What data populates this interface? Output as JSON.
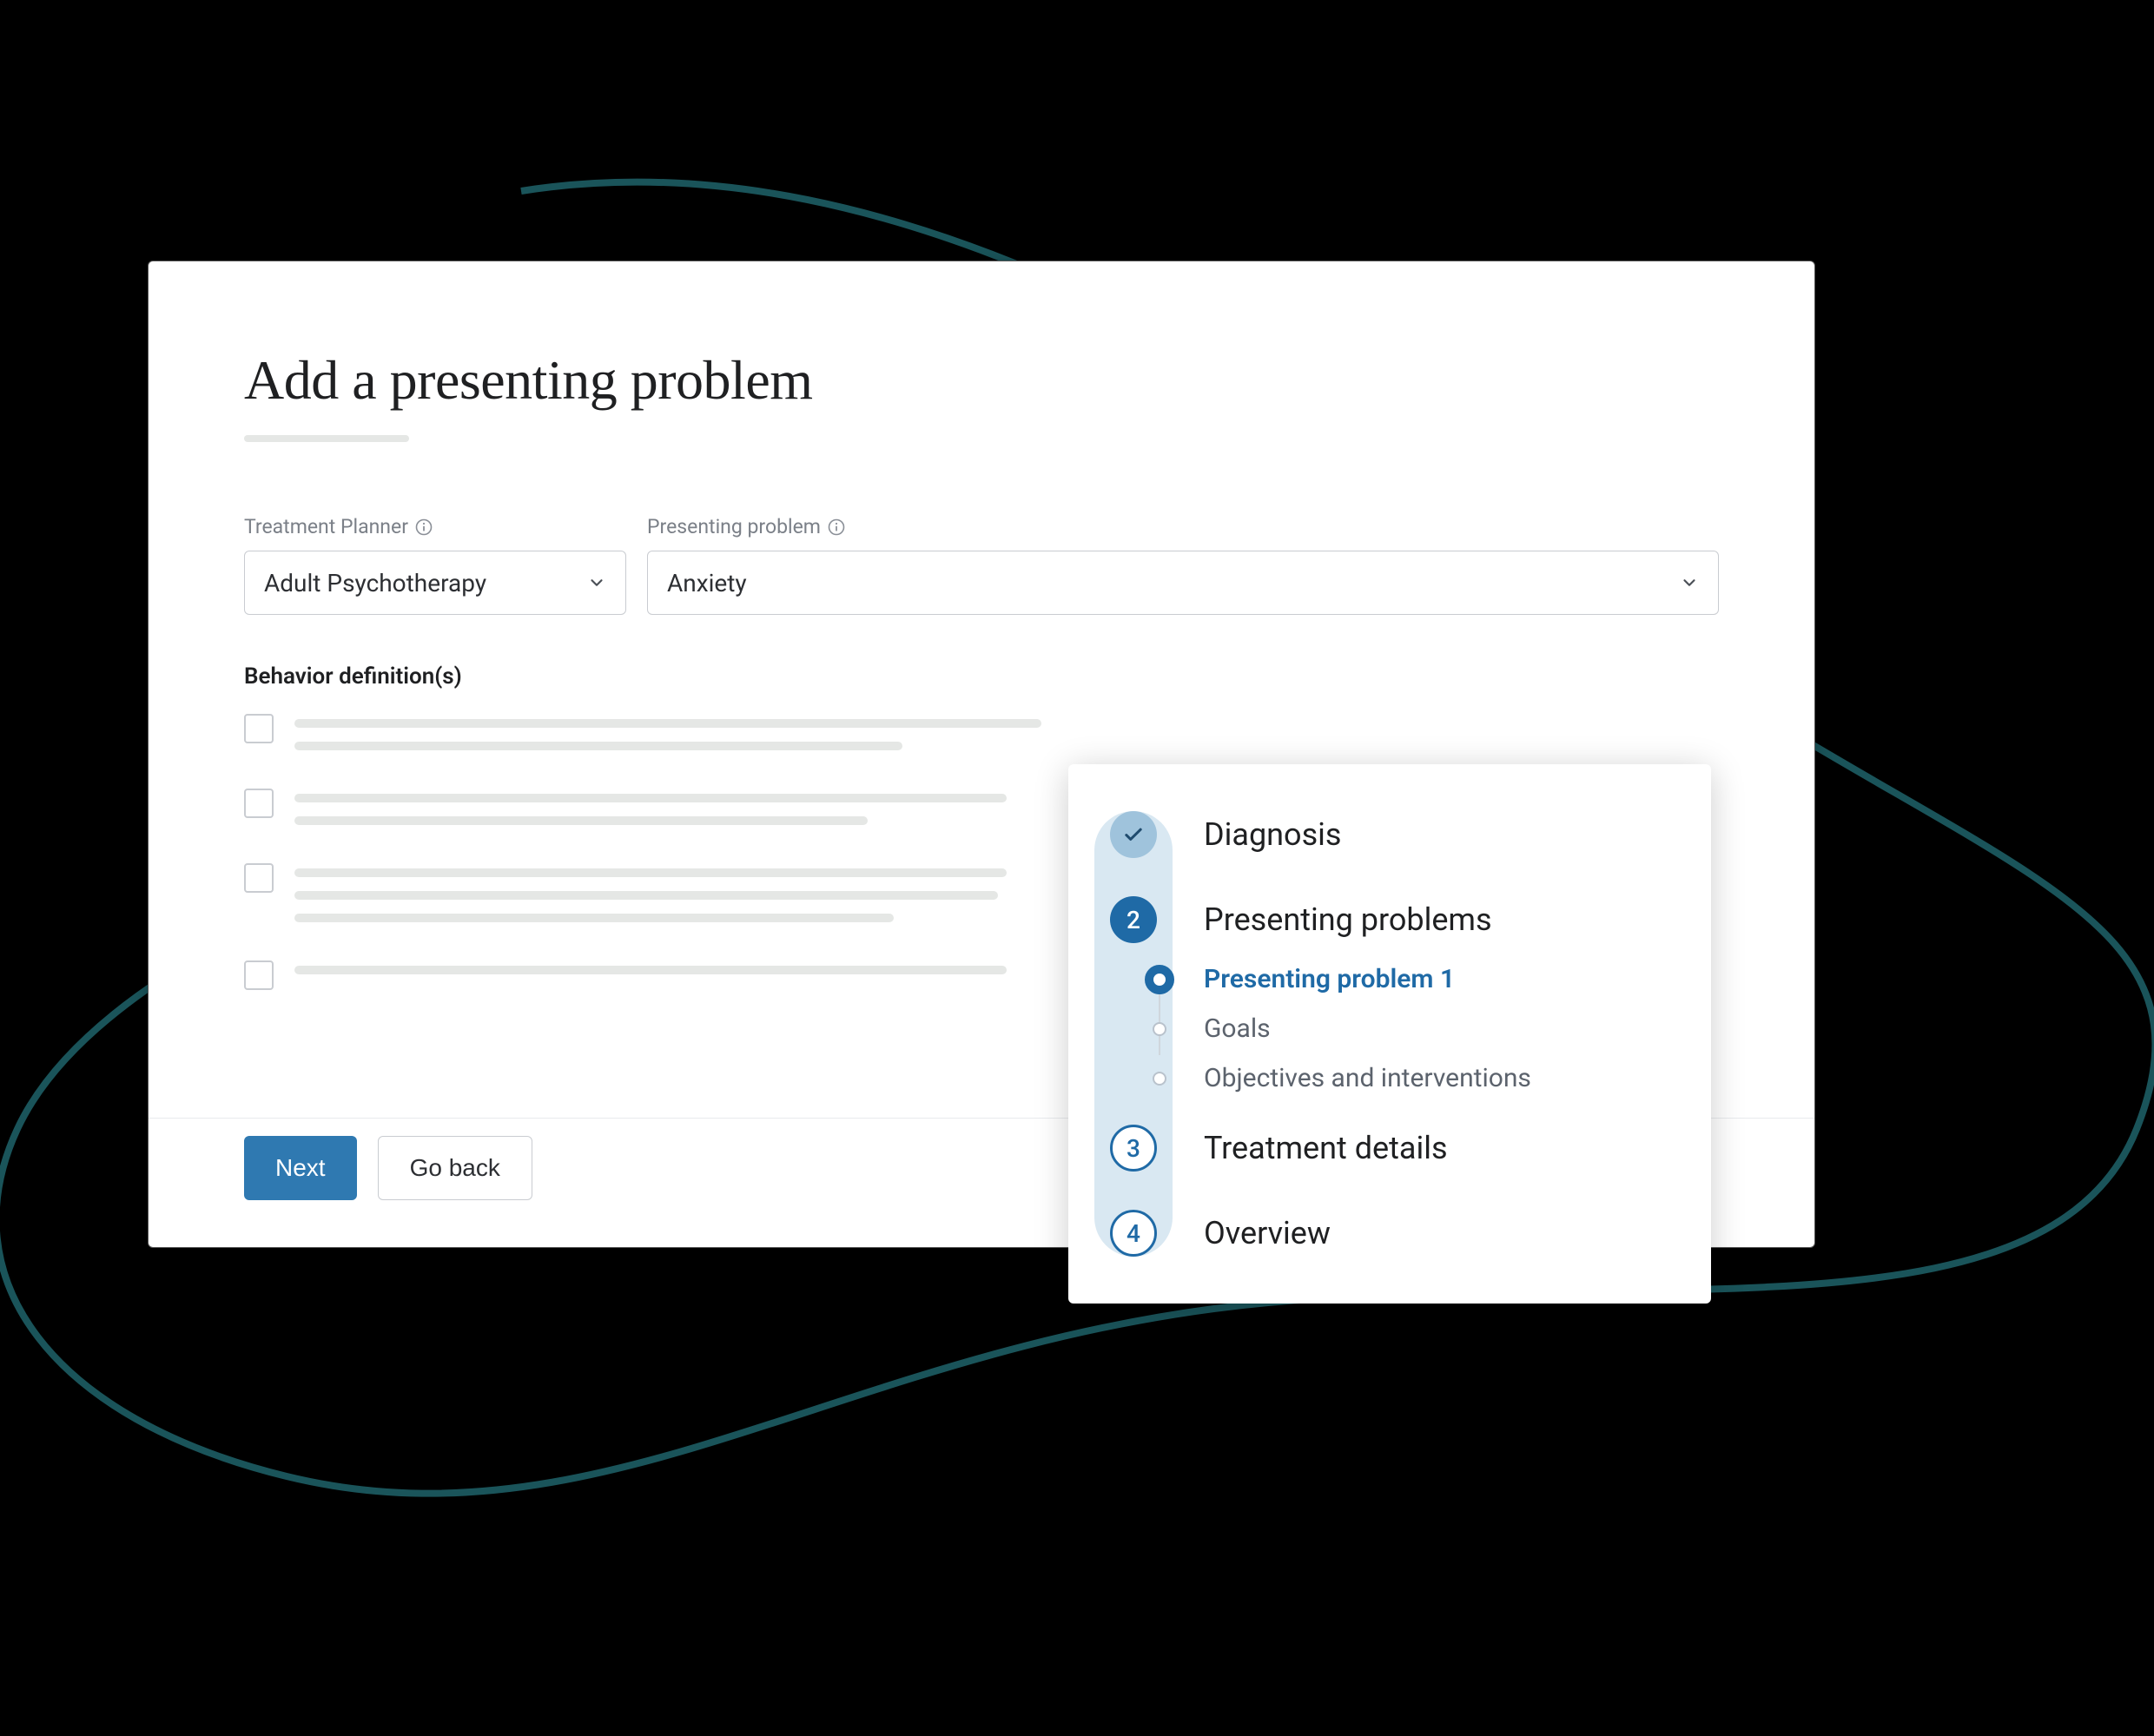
{
  "colors": {
    "background": "#000000",
    "card_bg": "#ffffff",
    "curve_stroke": "#1a545a",
    "title_text": "#1f2022",
    "label_muted": "#7b8088",
    "border": "#c9ccd1",
    "placeholder_bar": "#e5e7e5",
    "primary": "#2f79b1",
    "step_active": "#1f6aa6",
    "step_rail": "#d9e8f2",
    "step_complete_bg": "#9fc3dc"
  },
  "form": {
    "title": "Add a presenting problem",
    "planner": {
      "label": "Treatment Planner",
      "value": "Adult Psychotherapy"
    },
    "problem": {
      "label": "Presenting problem",
      "value": "Anxiety"
    },
    "definitions_label": "Behavior definition(s)",
    "definitions": [
      {
        "line_widths": [
          860,
          700
        ]
      },
      {
        "line_widths": [
          820,
          660
        ]
      },
      {
        "line_widths": [
          820,
          810,
          690
        ]
      },
      {
        "line_widths": [
          820
        ]
      }
    ]
  },
  "actions": {
    "next": "Next",
    "back": "Go back"
  },
  "stepper": {
    "steps": [
      {
        "state": "complete",
        "label": "Diagnosis"
      },
      {
        "state": "active",
        "number": "2",
        "label": "Presenting problems"
      },
      {
        "state": "upcoming",
        "number": "3",
        "label": "Treatment details"
      },
      {
        "state": "upcoming",
        "number": "4",
        "label": "Overview"
      }
    ],
    "substeps": [
      {
        "state": "active",
        "label": "Presenting problem 1"
      },
      {
        "state": "pending",
        "label": "Goals"
      },
      {
        "state": "pending",
        "label": "Objectives and interventions"
      }
    ]
  }
}
